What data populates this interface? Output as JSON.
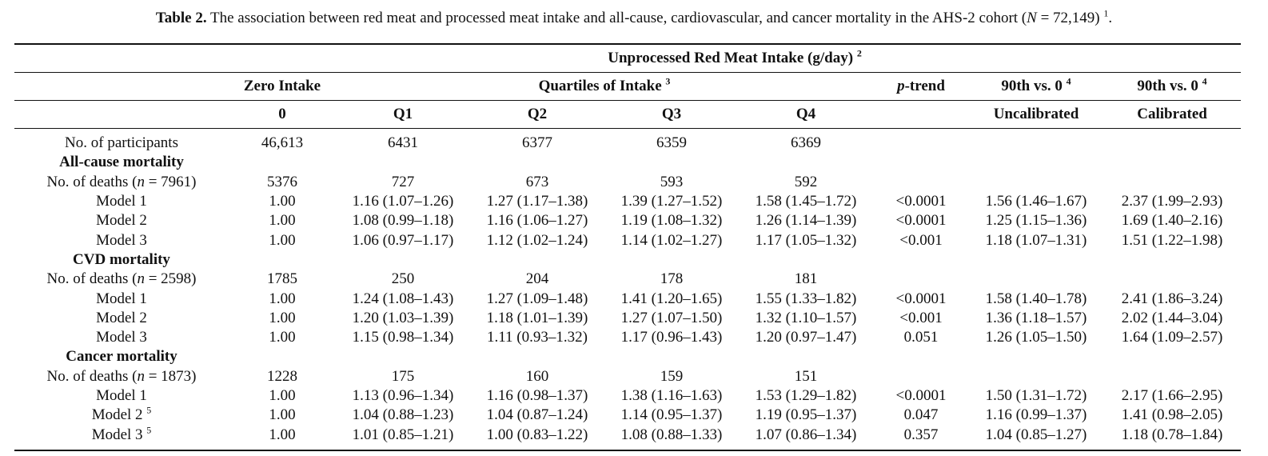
{
  "caption": {
    "label": "Table 2.",
    "text_part1": " The association between red meat and processed meat intake and all-cause, cardiovascular, and cancer mortality in the AHS-2 cohort (",
    "n_symbol": "N",
    "text_part2": " = 72,149) ",
    "footnote": "1",
    "end": "."
  },
  "header": {
    "spanner": "Unprocessed Red Meat Intake (g/day) ",
    "spanner_note": "2",
    "zero_intake": "Zero Intake",
    "quartiles": "Quartiles of Intake ",
    "quartiles_note": "3",
    "p_italic": "p",
    "p_rest": "-trend",
    "ninetieth_a": "90th vs. 0 ",
    "ninetieth_a_note": "4",
    "ninetieth_b": "90th vs. 0 ",
    "ninetieth_b_note": "4",
    "col_zero": "0",
    "col_q1": "Q1",
    "col_q2": "Q2",
    "col_q3": "Q3",
    "col_q4": "Q4",
    "col_uncal": "Uncalibrated",
    "col_cal": "Calibrated"
  },
  "rows": {
    "participants": {
      "label": "No. of participants",
      "zero": "46,613",
      "q1": "6431",
      "q2": "6377",
      "q3": "6359",
      "q4": "6369"
    },
    "allcause": {
      "title": "All-cause mortality",
      "deaths_label_a": "No. of deaths (",
      "n": "n",
      "deaths_label_b": " = 7961)",
      "deaths": {
        "zero": "5376",
        "q1": "727",
        "q2": "673",
        "q3": "593",
        "q4": "592"
      },
      "m1": {
        "label": "Model 1",
        "zero": "1.00",
        "q1": "1.16 (1.07–1.26)",
        "q2": "1.27 (1.17–1.38)",
        "q3": "1.39 (1.27–1.52)",
        "q4": "1.58 (1.45–1.72)",
        "p": "<0.0001",
        "unc": "1.56 (1.46–1.67)",
        "cal": "2.37 (1.99–2.93)"
      },
      "m2": {
        "label": "Model 2",
        "zero": "1.00",
        "q1": "1.08 (0.99–1.18)",
        "q2": "1.16 (1.06–1.27)",
        "q3": "1.19 (1.08–1.32)",
        "q4": "1.26 (1.14–1.39)",
        "p": "<0.0001",
        "unc": "1.25 (1.15–1.36)",
        "cal": "1.69 (1.40–2.16)"
      },
      "m3": {
        "label": "Model 3",
        "zero": "1.00",
        "q1": "1.06 (0.97–1.17)",
        "q2": "1.12 (1.02–1.24)",
        "q3": "1.14 (1.02–1.27)",
        "q4": "1.17 (1.05–1.32)",
        "p": "<0.001",
        "unc": "1.18 (1.07–1.31)",
        "cal": "1.51 (1.22–1.98)"
      }
    },
    "cvd": {
      "title": "CVD mortality",
      "deaths_label_a": "No. of deaths (",
      "n": "n",
      "deaths_label_b": " = 2598)",
      "deaths": {
        "zero": "1785",
        "q1": "250",
        "q2": "204",
        "q3": "178",
        "q4": "181"
      },
      "m1": {
        "label": "Model 1",
        "zero": "1.00",
        "q1": "1.24 (1.08–1.43)",
        "q2": "1.27 (1.09–1.48)",
        "q3": "1.41 (1.20–1.65)",
        "q4": "1.55 (1.33–1.82)",
        "p": "<0.0001",
        "unc": "1.58 (1.40–1.78)",
        "cal": "2.41 (1.86–3.24)"
      },
      "m2": {
        "label": "Model 2",
        "zero": "1.00",
        "q1": "1.20 (1.03–1.39)",
        "q2": "1.18 (1.01–1.39)",
        "q3": "1.27 (1.07–1.50)",
        "q4": "1.32 (1.10–1.57)",
        "p": "<0.001",
        "unc": "1.36 (1.18–1.57)",
        "cal": "2.02 (1.44–3.04)"
      },
      "m3": {
        "label": "Model 3",
        "zero": "1.00",
        "q1": "1.15 (0.98–1.34)",
        "q2": "1.11 (0.93–1.32)",
        "q3": "1.17 (0.96–1.43)",
        "q4": "1.20 (0.97–1.47)",
        "p": "0.051",
        "unc": "1.26 (1.05–1.50)",
        "cal": "1.64 (1.09–2.57)"
      }
    },
    "cancer": {
      "title": "Cancer mortality",
      "deaths_label_a": "No. of deaths (",
      "n": "n",
      "deaths_label_b": " = 1873)",
      "deaths": {
        "zero": "1228",
        "q1": "175",
        "q2": "160",
        "q3": "159",
        "q4": "151"
      },
      "m1": {
        "label": "Model 1",
        "note": "",
        "zero": "1.00",
        "q1": "1.13 (0.96–1.34)",
        "q2": "1.16 (0.98–1.37)",
        "q3": "1.38 (1.16–1.63)",
        "q4": "1.53 (1.29–1.82)",
        "p": "<0.0001",
        "unc": "1.50 (1.31–1.72)",
        "cal": "2.17 (1.66–2.95)"
      },
      "m2": {
        "label": "Model 2 ",
        "note": "5",
        "zero": "1.00",
        "q1": "1.04 (0.88–1.23)",
        "q2": "1.04 (0.87–1.24)",
        "q3": "1.14 (0.95–1.37)",
        "q4": "1.19 (0.95–1.37)",
        "p": "0.047",
        "unc": "1.16 (0.99–1.37)",
        "cal": "1.41 (0.98–2.05)"
      },
      "m3": {
        "label": "Model 3 ",
        "note": "5",
        "zero": "1.00",
        "q1": "1.01 (0.85–1.21)",
        "q2": "1.00 (0.83–1.22)",
        "q3": "1.08 (0.88–1.33)",
        "q4": "1.07 (0.86–1.34)",
        "p": "0.357",
        "unc": "1.04 (0.85–1.27)",
        "cal": "1.18 (0.78–1.84)"
      }
    }
  }
}
